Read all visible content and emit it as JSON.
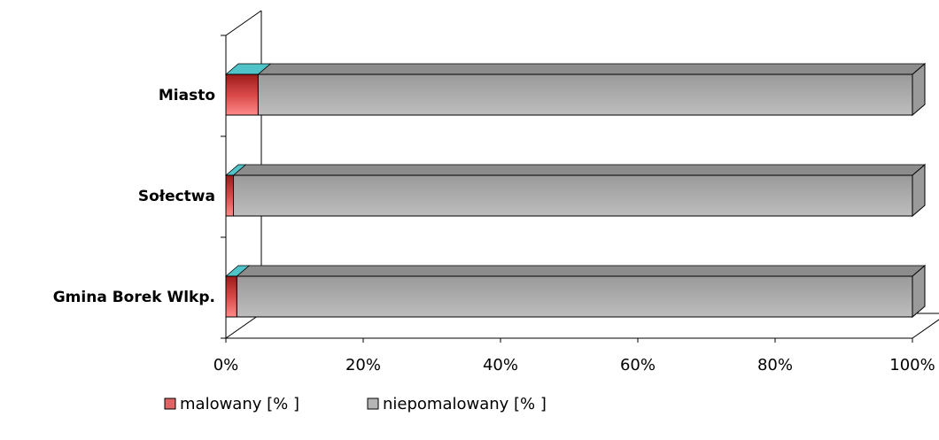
{
  "chart_data": {
    "type": "bar",
    "stacked": "percent",
    "orientation": "horizontal",
    "categories": [
      "Miasto",
      "Sołectwa",
      "Gmina Borek Wlkp."
    ],
    "series": [
      {
        "name": "malowany  [% ]",
        "values": [
          4.7,
          1.1,
          1.6
        ],
        "color": "#e06666"
      },
      {
        "name": "niepomalowany [% ]",
        "values": [
          95.3,
          98.9,
          98.4
        ],
        "color": "#b5b5b5"
      }
    ],
    "x_ticks": [
      "0%",
      "20%",
      "40%",
      "60%",
      "80%",
      "100%"
    ],
    "xlim": [
      0,
      100
    ],
    "legend_position": "bottom",
    "three_d": true
  }
}
